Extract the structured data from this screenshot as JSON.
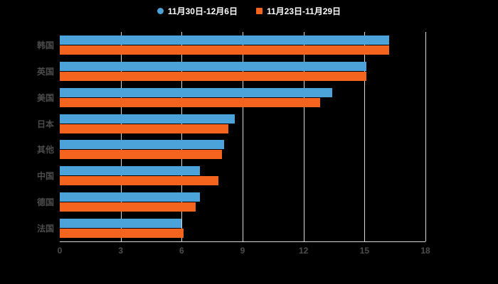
{
  "chart_data": {
    "type": "bar",
    "orientation": "horizontal",
    "title": "",
    "xlabel": "",
    "ylabel": "",
    "categories": [
      "韩国",
      "英国",
      "美国",
      "日本",
      "其他",
      "中国",
      "德国",
      "法国"
    ],
    "series": [
      {
        "name": "11月30日-12月6日",
        "color": "#4BA3DA",
        "marker": "circle",
        "values": [
          16.2,
          15.1,
          13.4,
          8.6,
          8.1,
          6.9,
          6.9,
          6.0
        ]
      },
      {
        "name": "11月23日-11月29日",
        "color": "#F4641E",
        "marker": "square",
        "values": [
          16.2,
          15.1,
          12.8,
          8.3,
          8.0,
          7.8,
          6.7,
          6.1
        ]
      }
    ],
    "xticks": [
      0,
      3,
      6,
      9,
      12,
      15,
      18
    ],
    "xlim": [
      0,
      18
    ],
    "grid": true,
    "legend_position": "top",
    "background": "#000000"
  }
}
